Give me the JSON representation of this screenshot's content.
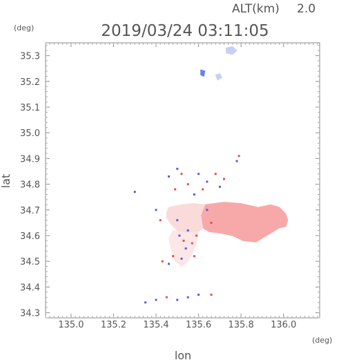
{
  "header": {
    "alt_label": "ALT(km)",
    "alt_value": "2.0",
    "datetime": "2019/03/24 03:11:05"
  },
  "axes": {
    "x_unit": "(deg)",
    "y_unit": "(deg)"
  },
  "chart_data": {
    "type": "scatter",
    "title": "2019/03/24 03:11:05",
    "xlabel": "lon",
    "ylabel": "lat",
    "xlim": [
      134.88,
      136.17
    ],
    "ylim": [
      34.28,
      35.35
    ],
    "x_ticks": [
      135.0,
      135.2,
      135.4,
      135.6,
      135.8,
      136.0
    ],
    "x_tick_labels": [
      "135.0",
      "135.2",
      "135.4",
      "135.6",
      "135.8",
      "136.0"
    ],
    "y_ticks": [
      34.3,
      34.4,
      34.5,
      34.6,
      34.7,
      34.8,
      34.9,
      35.0,
      35.1,
      35.2,
      35.3
    ],
    "y_tick_labels": [
      "34.3",
      "34.4",
      "34.5",
      "34.6",
      "34.7",
      "34.8",
      "34.9",
      "35.0",
      "35.1",
      "35.2",
      "35.3"
    ],
    "grid": false,
    "regions": [
      {
        "name": "main-echo-east",
        "color": "#f7a9a9",
        "polygon": [
          [
            135.63,
            34.72
          ],
          [
            135.72,
            34.73
          ],
          [
            135.8,
            34.725
          ],
          [
            135.88,
            34.71
          ],
          [
            135.94,
            34.72
          ],
          [
            135.98,
            34.71
          ],
          [
            136.01,
            34.685
          ],
          [
            136.02,
            34.66
          ],
          [
            136.01,
            34.635
          ],
          [
            135.98,
            34.63
          ],
          [
            135.95,
            34.615
          ],
          [
            135.91,
            34.595
          ],
          [
            135.87,
            34.575
          ],
          [
            135.81,
            34.58
          ],
          [
            135.76,
            34.6
          ],
          [
            135.7,
            34.61
          ],
          [
            135.65,
            34.615
          ],
          [
            135.62,
            34.63
          ],
          [
            135.61,
            34.68
          ]
        ]
      },
      {
        "name": "main-echo-west",
        "color": "#fbdada",
        "polygon": [
          [
            135.46,
            34.71
          ],
          [
            135.52,
            34.72
          ],
          [
            135.58,
            34.725
          ],
          [
            135.63,
            34.72
          ],
          [
            135.61,
            34.68
          ],
          [
            135.62,
            34.63
          ],
          [
            135.6,
            34.615
          ],
          [
            135.55,
            34.61
          ],
          [
            135.5,
            34.62
          ],
          [
            135.47,
            34.645
          ],
          [
            135.45,
            34.67
          ],
          [
            135.45,
            34.69
          ]
        ]
      },
      {
        "name": "south-echo",
        "color": "#fde6e6",
        "polygon": [
          [
            135.48,
            34.62
          ],
          [
            135.55,
            34.61
          ],
          [
            135.6,
            34.615
          ],
          [
            135.59,
            34.57
          ],
          [
            135.57,
            34.53
          ],
          [
            135.55,
            34.5
          ],
          [
            135.52,
            34.48
          ],
          [
            135.49,
            34.5
          ],
          [
            135.47,
            34.55
          ],
          [
            135.46,
            34.59
          ]
        ]
      },
      {
        "name": "north-echo-1",
        "color": "#c8d0f5",
        "polygon": [
          [
            135.73,
            35.33
          ],
          [
            135.76,
            35.335
          ],
          [
            135.78,
            35.32
          ],
          [
            135.76,
            35.305
          ],
          [
            135.73,
            35.31
          ]
        ]
      },
      {
        "name": "north-echo-2",
        "color": "#c8d0f5",
        "polygon": [
          [
            135.68,
            35.225
          ],
          [
            135.7,
            35.23
          ],
          [
            135.71,
            35.215
          ],
          [
            135.69,
            35.205
          ]
        ]
      },
      {
        "name": "north-echo-3",
        "color": "#6e7ff0",
        "polygon": [
          [
            135.61,
            35.245
          ],
          [
            135.63,
            35.24
          ],
          [
            135.625,
            35.22
          ],
          [
            135.61,
            35.225
          ]
        ]
      }
    ],
    "points": [
      {
        "x": 135.5,
        "y": 34.86,
        "v": -1
      },
      {
        "x": 135.52,
        "y": 34.84,
        "v": 1
      },
      {
        "x": 135.46,
        "y": 34.83,
        "v": -1
      },
      {
        "x": 135.55,
        "y": 34.8,
        "v": 1
      },
      {
        "x": 135.6,
        "y": 34.84,
        "v": -1
      },
      {
        "x": 135.62,
        "y": 34.78,
        "v": 1
      },
      {
        "x": 135.64,
        "y": 34.81,
        "v": -1
      },
      {
        "x": 135.68,
        "y": 34.84,
        "v": 1
      },
      {
        "x": 135.7,
        "y": 34.79,
        "v": -1
      },
      {
        "x": 135.72,
        "y": 34.82,
        "v": 1
      },
      {
        "x": 135.78,
        "y": 34.89,
        "v": -1
      },
      {
        "x": 135.79,
        "y": 34.91,
        "v": 1
      },
      {
        "x": 135.58,
        "y": 34.76,
        "v": -1
      },
      {
        "x": 135.49,
        "y": 34.78,
        "v": 1
      },
      {
        "x": 135.4,
        "y": 34.7,
        "v": -1
      },
      {
        "x": 135.42,
        "y": 34.66,
        "v": 1
      },
      {
        "x": 135.51,
        "y": 34.6,
        "v": -1
      },
      {
        "x": 135.53,
        "y": 34.58,
        "v": 1
      },
      {
        "x": 135.55,
        "y": 34.62,
        "v": -1
      },
      {
        "x": 135.57,
        "y": 34.57,
        "v": 1
      },
      {
        "x": 135.54,
        "y": 34.55,
        "v": -1
      },
      {
        "x": 135.59,
        "y": 34.6,
        "v": 1
      },
      {
        "x": 135.5,
        "y": 34.66,
        "v": -1
      },
      {
        "x": 135.48,
        "y": 34.52,
        "v": 1
      },
      {
        "x": 135.52,
        "y": 34.51,
        "v": -1
      },
      {
        "x": 135.43,
        "y": 34.5,
        "v": 1
      },
      {
        "x": 135.46,
        "y": 34.49,
        "v": -1
      },
      {
        "x": 135.35,
        "y": 34.34,
        "v": -1
      },
      {
        "x": 135.4,
        "y": 34.35,
        "v": -1
      },
      {
        "x": 135.45,
        "y": 34.36,
        "v": 1
      },
      {
        "x": 135.5,
        "y": 34.35,
        "v": -1
      },
      {
        "x": 135.55,
        "y": 34.36,
        "v": -1
      },
      {
        "x": 135.6,
        "y": 34.37,
        "v": -1
      },
      {
        "x": 135.66,
        "y": 34.37,
        "v": 1
      },
      {
        "x": 135.3,
        "y": 34.77,
        "v": -1
      },
      {
        "x": 135.66,
        "y": 34.65,
        "v": 1
      },
      {
        "x": 135.64,
        "y": 34.7,
        "v": -1
      },
      {
        "x": 135.58,
        "y": 34.52,
        "v": 1
      }
    ]
  }
}
